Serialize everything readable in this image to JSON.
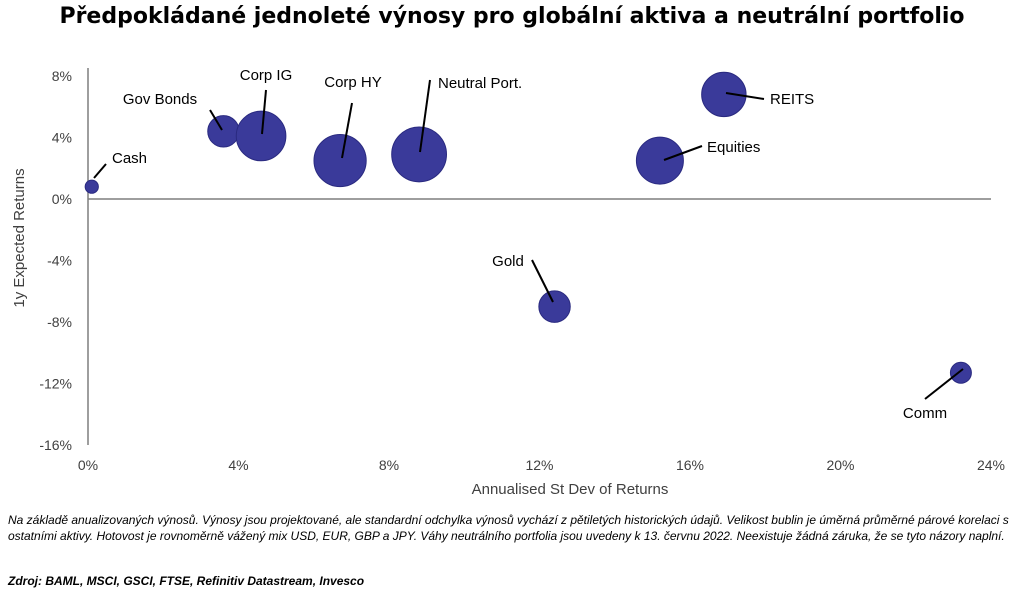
{
  "title": "Předpokládané jednoleté výnosy pro globální aktiva a neutrální portfolio",
  "note": "Na základě anualizovaných výnosů. Výnosy jsou projektované, ale standardní odchylka výnosů vychází z pětiletých historických údajů. Velikost bublin je úměrná průměrné párové korelaci s ostatními aktivy. Hotovost je rovnoměrně vážený mix USD, EUR, GBP a JPY. Váhy neutrálního portfolia jsou uvedeny k 13. červnu 2022. Neexistuje žádná záruka, že se tyto názory naplní.",
  "source": "Zdroj: BAML, MSCI, GSCI, FTSE, Refinitiv Datastream, Invesco",
  "chart_data": {
    "type": "scatter",
    "title": "Předpokládané jednoleté výnosy pro globální aktiva a neutrální portfolio",
    "xlabel": "Annualised St Dev of Returns",
    "ylabel": "1y Expected Returns",
    "xlim": [
      0,
      24
    ],
    "ylim": [
      -16,
      10
    ],
    "x_ticks": [
      "0%",
      "4%",
      "8%",
      "12%",
      "16%",
      "20%",
      "24%"
    ],
    "x_tick_values": [
      0,
      4,
      8,
      12,
      16,
      20,
      24
    ],
    "y_ticks": [
      "8%",
      "4%",
      "0%",
      "-4%",
      "-8%",
      "-12%",
      "-16%"
    ],
    "y_tick_values": [
      8,
      4,
      0,
      -4,
      -8,
      -12,
      -16
    ],
    "grid": false,
    "bubble_color": "#3a3a9a",
    "points": [
      {
        "label": "Cash",
        "x": 0.1,
        "y": 0.8,
        "size": 0.1
      },
      {
        "label": "Gov Bonds",
        "x": 3.6,
        "y": 4.4,
        "size": 0.45
      },
      {
        "label": "Corp IG",
        "x": 4.6,
        "y": 4.1,
        "size": 0.8
      },
      {
        "label": "Corp HY",
        "x": 6.7,
        "y": 2.5,
        "size": 0.85
      },
      {
        "label": "Neutral Port.",
        "x": 8.8,
        "y": 2.9,
        "size": 0.9
      },
      {
        "label": "REITS",
        "x": 16.9,
        "y": 6.8,
        "size": 0.7
      },
      {
        "label": "Equities",
        "x": 15.2,
        "y": 2.5,
        "size": 0.75
      },
      {
        "label": "Gold",
        "x": 12.4,
        "y": -7.0,
        "size": 0.45
      },
      {
        "label": "Comm",
        "x": 23.2,
        "y": -11.3,
        "size": 0.25
      }
    ]
  }
}
